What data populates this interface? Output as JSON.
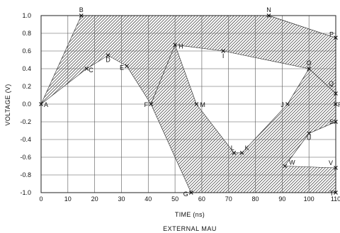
{
  "chart_data": {
    "type": "area",
    "title": "",
    "caption": "EXTERNAL MAU",
    "xlabel": "TIME (ns)",
    "ylabel": "VOLTAGE (V)",
    "xlim": [
      0,
      110
    ],
    "ylim": [
      -1.0,
      1.0
    ],
    "grid": true,
    "x_ticks": [
      0,
      10,
      20,
      30,
      40,
      50,
      60,
      70,
      80,
      90,
      100,
      110
    ],
    "y_ticks": [
      1.0,
      0.8,
      0.6,
      0.4,
      0.2,
      0.0,
      -0.2,
      -0.4,
      -0.6,
      -0.8,
      -1.0
    ],
    "y_tick_labels": [
      "1.0",
      "0.8",
      "0.6",
      "0.4",
      "0.2",
      "0.0",
      "-0.2",
      "-0.4",
      "-0.6",
      "-0.8",
      "-1.0"
    ],
    "points": [
      {
        "label": "A",
        "x": 0,
        "y": 0.0
      },
      {
        "label": "B",
        "x": 15,
        "y": 1.0
      },
      {
        "label": "C",
        "x": 17,
        "y": 0.4
      },
      {
        "label": "D",
        "x": 25,
        "y": 0.55
      },
      {
        "label": "E",
        "x": 32,
        "y": 0.43
      },
      {
        "label": "F",
        "x": 41,
        "y": 0.0
      },
      {
        "label": "G",
        "x": 56,
        "y": -1.0
      },
      {
        "label": "H",
        "x": 50,
        "y": 0.67
      },
      {
        "label": "I",
        "x": 68,
        "y": 0.6
      },
      {
        "label": "J",
        "x": 92,
        "y": 0.0
      },
      {
        "label": "K",
        "x": 75,
        "y": -0.55
      },
      {
        "label": "L",
        "x": 72,
        "y": -0.55
      },
      {
        "label": "M",
        "x": 58,
        "y": 0.0
      },
      {
        "label": "N",
        "x": 85,
        "y": 1.0
      },
      {
        "label": "O",
        "x": 100,
        "y": 0.4
      },
      {
        "label": "P",
        "x": 110,
        "y": 0.75
      },
      {
        "label": "Q",
        "x": 110,
        "y": 0.12
      },
      {
        "label": "R",
        "x": 110,
        "y": 0.0
      },
      {
        "label": "S",
        "x": 110,
        "y": -0.2
      },
      {
        "label": "T",
        "x": 110,
        "y": -1.0
      },
      {
        "label": "U",
        "x": 100,
        "y": -0.33
      },
      {
        "label": "V",
        "x": 110,
        "y": -0.72
      },
      {
        "label": "W",
        "x": 91,
        "y": -0.7
      }
    ],
    "shaded_regions": [
      {
        "name": "upper-band",
        "vertices": [
          [
            0,
            0
          ],
          [
            15,
            1.0
          ],
          [
            85,
            1.0
          ],
          [
            110,
            0.75
          ],
          [
            110,
            0.12
          ],
          [
            100,
            0.4
          ],
          [
            68,
            0.6
          ],
          [
            50,
            0.67
          ],
          [
            41,
            0.0
          ],
          [
            32,
            0.43
          ],
          [
            25,
            0.55
          ],
          [
            17,
            0.4
          ]
        ]
      },
      {
        "name": "lower-band",
        "vertices": [
          [
            41,
            0.0
          ],
          [
            50,
            0.67
          ],
          [
            58,
            0.0
          ],
          [
            72,
            -0.55
          ],
          [
            75,
            -0.55
          ],
          [
            92,
            0.0
          ],
          [
            100,
            0.4
          ],
          [
            110,
            0.12
          ],
          [
            110,
            -0.2
          ],
          [
            100,
            -0.33
          ],
          [
            91,
            -0.7
          ],
          [
            110,
            -0.72
          ],
          [
            110,
            -1.0
          ],
          [
            56,
            -1.0
          ]
        ]
      }
    ],
    "colors": {
      "hatch": "#222222",
      "grid": "#555555",
      "background": "#ffffff"
    }
  }
}
